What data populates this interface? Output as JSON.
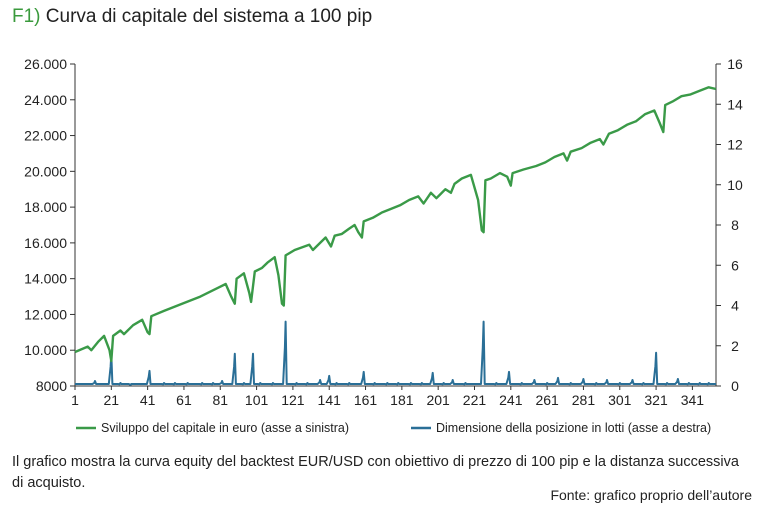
{
  "title_tag": "F1)",
  "title_text": "Curva di capitale del sistema a 100 pip",
  "caption": "Il grafico mostra la curva equity del backtest EUR/USD con obiettivo di prezzo di 100 pip e la distanza successiva di acquisto.",
  "source": "Fonte: grafico proprio dell’autore",
  "colors": {
    "equity": "#3a9a48",
    "position": "#2a6f97",
    "axis": "#333333",
    "title_tag": "#3a9a3c"
  },
  "chart_data": {
    "type": "line",
    "grid": false,
    "legend_position": "bottom",
    "xlim": [
      1,
      354
    ],
    "x_ticks": [
      1,
      21,
      41,
      61,
      81,
      101,
      121,
      141,
      161,
      181,
      201,
      221,
      241,
      261,
      281,
      301,
      321,
      341
    ],
    "x_tick_labels": [
      "1",
      "21",
      "41",
      "61",
      "81",
      "101",
      "121",
      "141",
      "161",
      "181",
      "201",
      "221",
      "241",
      "261",
      "281",
      "301",
      "321",
      "341"
    ],
    "y_left": {
      "lim": [
        8000,
        26000
      ],
      "ticks": [
        8000,
        10000,
        12000,
        14000,
        16000,
        18000,
        20000,
        22000,
        24000,
        26000
      ],
      "tick_labels": [
        "8000",
        "10.000",
        "12.000",
        "14.000",
        "16.000",
        "18.000",
        "20.000",
        "22.000",
        "24.000",
        "26.000"
      ]
    },
    "y_right": {
      "lim": [
        0,
        16
      ],
      "ticks": [
        0,
        2,
        4,
        6,
        8,
        10,
        12,
        14,
        16
      ],
      "tick_labels": [
        "0",
        "2",
        "4",
        "6",
        "8",
        "10",
        "12",
        "14",
        "16"
      ]
    },
    "series": [
      {
        "name": "Sviluppo del capitale in euro (asse a sinistra)",
        "axis": "left",
        "points": [
          [
            1,
            9900
          ],
          [
            8,
            10200
          ],
          [
            10,
            10000
          ],
          [
            14,
            10500
          ],
          [
            17,
            10800
          ],
          [
            20,
            10000
          ],
          [
            21,
            9400
          ],
          [
            22,
            10800
          ],
          [
            26,
            11100
          ],
          [
            28,
            10900
          ],
          [
            33,
            11400
          ],
          [
            38,
            11700
          ],
          [
            41,
            11000
          ],
          [
            42,
            10900
          ],
          [
            43,
            11900
          ],
          [
            50,
            12200
          ],
          [
            60,
            12600
          ],
          [
            70,
            13000
          ],
          [
            80,
            13500
          ],
          [
            84,
            13700
          ],
          [
            87,
            13000
          ],
          [
            89,
            12600
          ],
          [
            90,
            14000
          ],
          [
            94,
            14300
          ],
          [
            97,
            13200
          ],
          [
            98,
            12700
          ],
          [
            100,
            14400
          ],
          [
            104,
            14600
          ],
          [
            107,
            14900
          ],
          [
            111,
            15200
          ],
          [
            113,
            14200
          ],
          [
            115,
            12600
          ],
          [
            116,
            12500
          ],
          [
            117,
            15300
          ],
          [
            122,
            15600
          ],
          [
            130,
            15900
          ],
          [
            132,
            15600
          ],
          [
            136,
            16000
          ],
          [
            139,
            16300
          ],
          [
            142,
            15800
          ],
          [
            144,
            16400
          ],
          [
            148,
            16500
          ],
          [
            152,
            16800
          ],
          [
            155,
            17000
          ],
          [
            157,
            16600
          ],
          [
            159,
            16300
          ],
          [
            160,
            17200
          ],
          [
            165,
            17400
          ],
          [
            170,
            17700
          ],
          [
            175,
            17900
          ],
          [
            180,
            18100
          ],
          [
            185,
            18400
          ],
          [
            190,
            18600
          ],
          [
            193,
            18200
          ],
          [
            197,
            18800
          ],
          [
            200,
            18500
          ],
          [
            202,
            18700
          ],
          [
            205,
            19000
          ],
          [
            208,
            18800
          ],
          [
            210,
            19300
          ],
          [
            214,
            19600
          ],
          [
            219,
            19800
          ],
          [
            223,
            18400
          ],
          [
            225,
            16700
          ],
          [
            226,
            16600
          ],
          [
            227,
            19500
          ],
          [
            230,
            19600
          ],
          [
            235,
            19900
          ],
          [
            239,
            19700
          ],
          [
            241,
            19200
          ],
          [
            242,
            19900
          ],
          [
            248,
            20100
          ],
          [
            255,
            20300
          ],
          [
            260,
            20500
          ],
          [
            265,
            20800
          ],
          [
            270,
            21000
          ],
          [
            272,
            20600
          ],
          [
            274,
            21100
          ],
          [
            280,
            21300
          ],
          [
            285,
            21600
          ],
          [
            290,
            21800
          ],
          [
            292,
            21500
          ],
          [
            295,
            22100
          ],
          [
            300,
            22300
          ],
          [
            305,
            22600
          ],
          [
            310,
            22800
          ],
          [
            315,
            23200
          ],
          [
            320,
            23400
          ],
          [
            323,
            22700
          ],
          [
            325,
            22200
          ],
          [
            326,
            23700
          ],
          [
            330,
            23900
          ],
          [
            335,
            24200
          ],
          [
            340,
            24300
          ],
          [
            345,
            24500
          ],
          [
            350,
            24700
          ],
          [
            354,
            24600
          ]
        ]
      },
      {
        "name": "Dimensione della posizione in lotti (asse a destra)",
        "axis": "right",
        "baseline": 0.1,
        "spikes": [
          [
            12,
            0.25
          ],
          [
            21,
            1.6
          ],
          [
            26,
            0.15
          ],
          [
            32,
            0.1
          ],
          [
            42,
            0.75
          ],
          [
            50,
            0.15
          ],
          [
            56,
            0.15
          ],
          [
            63,
            0.15
          ],
          [
            71,
            0.15
          ],
          [
            77,
            0.15
          ],
          [
            82,
            0.25
          ],
          [
            89,
            1.6
          ],
          [
            94,
            0.15
          ],
          [
            99,
            1.6
          ],
          [
            103,
            0.15
          ],
          [
            110,
            0.15
          ],
          [
            117,
            3.2
          ],
          [
            123,
            0.15
          ],
          [
            129,
            0.15
          ],
          [
            136,
            0.3
          ],
          [
            141,
            0.5
          ],
          [
            145,
            0.15
          ],
          [
            152,
            0.15
          ],
          [
            160,
            0.7
          ],
          [
            166,
            0.15
          ],
          [
            173,
            0.15
          ],
          [
            179,
            0.15
          ],
          [
            186,
            0.15
          ],
          [
            192,
            0.15
          ],
          [
            198,
            0.65
          ],
          [
            204,
            0.15
          ],
          [
            209,
            0.3
          ],
          [
            216,
            0.15
          ],
          [
            226,
            3.2
          ],
          [
            233,
            0.15
          ],
          [
            240,
            0.7
          ],
          [
            247,
            0.15
          ],
          [
            254,
            0.3
          ],
          [
            261,
            0.15
          ],
          [
            267,
            0.4
          ],
          [
            274,
            0.15
          ],
          [
            281,
            0.35
          ],
          [
            288,
            0.15
          ],
          [
            294,
            0.3
          ],
          [
            301,
            0.15
          ],
          [
            308,
            0.3
          ],
          [
            314,
            0.15
          ],
          [
            321,
            1.65
          ],
          [
            327,
            0.15
          ],
          [
            333,
            0.35
          ],
          [
            339,
            0.15
          ],
          [
            345,
            0.15
          ],
          [
            350,
            0.15
          ]
        ]
      }
    ]
  }
}
